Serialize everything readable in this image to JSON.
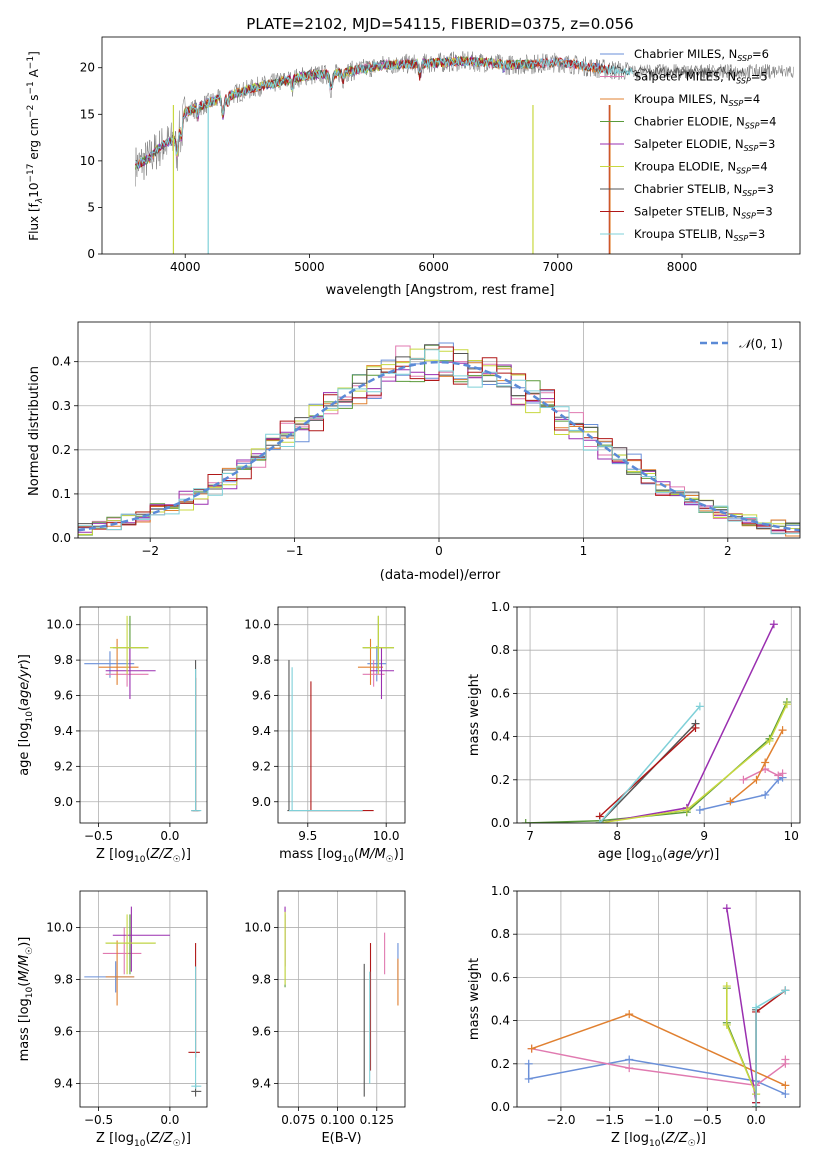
{
  "figure_title": "PLATE=2102, MJD=54115, FIBERID=0375, z=0.056",
  "colors": [
    "#6a8fd8",
    "#e07ab0",
    "#e08030",
    "#5a9a3a",
    "#9a2fb0",
    "#c8d840",
    "#555555",
    "#b01818",
    "#7fd0d8"
  ],
  "chart_data": [
    {
      "id": "spectrum",
      "type": "line",
      "xlabel": "wavelength [Angstrom, rest frame]",
      "ylabel": "Flux [f$_\\lambda$10$^{-17}$ erg cm$^{-2}$ s$^{-1}$ A$^{-1}$]",
      "ylabel_parts": [
        "Flux [f",
        "λ",
        "10",
        "−17",
        " erg cm",
        "−2",
        " s",
        "−1",
        " A",
        "−1",
        "]"
      ],
      "xlim": [
        3330,
        8950
      ],
      "ylim": [
        0,
        23.3
      ],
      "xticks": [
        4000,
        5000,
        6000,
        7000,
        8000
      ],
      "yticks": [
        0,
        5,
        10,
        15,
        20
      ],
      "grid": false,
      "legend_position": "right",
      "series": [
        {
          "name": "Chabrier MILES",
          "nssp": "6"
        },
        {
          "name": "Salpeter MILES",
          "nssp": "5"
        },
        {
          "name": "Kroupa MILES",
          "nssp": "4"
        },
        {
          "name": "Chabrier ELODIE",
          "nssp": "4"
        },
        {
          "name": "Salpeter ELODIE",
          "nssp": "3"
        },
        {
          "name": "Kroupa ELODIE",
          "nssp": "4"
        },
        {
          "name": "Chabrier STELIB",
          "nssp": "3"
        },
        {
          "name": "Salpeter STELIB",
          "nssp": "3"
        },
        {
          "name": "Kroupa STELIB",
          "nssp": "3"
        }
      ],
      "data_continuum": {
        "x": [
          3600,
          3700,
          3800,
          3900,
          4000,
          4200,
          4400,
          4600,
          4800,
          5000,
          5200,
          5400,
          5600,
          5800,
          6000,
          6200,
          6400,
          6600,
          6800,
          7000,
          7200,
          7400,
          7600
        ],
        "y": [
          9.5,
          10.2,
          11.5,
          12.2,
          15.2,
          16.3,
          17.2,
          18.0,
          18.6,
          19.2,
          19.3,
          19.8,
          20.3,
          20.4,
          20.5,
          20.7,
          20.6,
          20.3,
          20.4,
          20.6,
          20.2,
          19.8,
          19.6
        ]
      },
      "model_x_ranges": [
        [
          3600,
          7400
        ],
        [
          3600,
          7400
        ],
        [
          3600,
          7400
        ],
        [
          3600,
          6800
        ],
        [
          3600,
          6800
        ],
        [
          3900,
          6800
        ],
        [
          3600,
          8500
        ],
        [
          3600,
          7420
        ],
        [
          3600,
          7600
        ]
      ]
    },
    {
      "id": "residuals",
      "type": "histogram",
      "xlabel": "(data-model)/error",
      "ylabel": "Normed distribution",
      "xlim": [
        -2.5,
        2.5
      ],
      "ylim": [
        0,
        0.49
      ],
      "xticks": [
        -2,
        -1,
        0,
        1,
        2
      ],
      "yticks": [
        0.0,
        0.1,
        0.2,
        0.3,
        0.4
      ],
      "grid": true,
      "legend_position": "top-right",
      "reference_label": "𝒩(0, 1)",
      "reference_label_parts": [
        "𝒩",
        "(0, 1)"
      ],
      "bin_width": 0.1
    },
    {
      "id": "z-vs-age",
      "type": "errorbar",
      "xlabel": "Z [log10(Z/Z☉)]",
      "ylabel": "age [log10(age/yr)]",
      "xlim": [
        -0.63,
        0.26
      ],
      "ylim": [
        8.88,
        10.1
      ],
      "xticks": [
        -0.5,
        0.0
      ],
      "yticks": [
        9.0,
        9.2,
        9.4,
        9.6,
        9.8,
        10.0
      ],
      "grid": true,
      "points": [
        {
          "c": 0,
          "x": -0.42,
          "y": 9.78,
          "xe": [
            -0.6,
            -0.25
          ],
          "ye": [
            9.7,
            9.85
          ]
        },
        {
          "c": 1,
          "x": -0.3,
          "y": 9.72,
          "xe": [
            -0.45,
            -0.15
          ],
          "ye": [
            9.65,
            9.8
          ]
        },
        {
          "c": 2,
          "x": -0.37,
          "y": 9.76,
          "xe": [
            -0.5,
            -0.22
          ],
          "ye": [
            9.66,
            9.92
          ]
        },
        {
          "c": 3,
          "x": -0.28,
          "y": 9.87,
          "xe": [
            -0.4,
            -0.15
          ],
          "ye": [
            9.75,
            10.05
          ]
        },
        {
          "c": 4,
          "x": -0.28,
          "y": 9.74,
          "xe": [
            -0.45,
            -0.1
          ],
          "ye": [
            9.58,
            9.87
          ]
        },
        {
          "c": 5,
          "x": -0.3,
          "y": 9.87,
          "xe": [
            -0.42,
            -0.15
          ],
          "ye": [
            9.72,
            10.05
          ]
        },
        {
          "c": 6,
          "x": 0.18,
          "y": 8.95,
          "xe": [
            0.15,
            0.21
          ],
          "ye": [
            8.95,
            9.8
          ]
        },
        {
          "c": 7,
          "x": 0.18,
          "y": 8.95,
          "xe": [
            0.16,
            0.2
          ],
          "ye": [
            8.95,
            9.7
          ]
        },
        {
          "c": 8,
          "x": 0.18,
          "y": 8.95,
          "xe": [
            0.15,
            0.22
          ],
          "ye": [
            8.95,
            9.75
          ]
        }
      ]
    },
    {
      "id": "mass-vs-age",
      "type": "errorbar",
      "xlabel": "mass [log10(M/M☉)]",
      "ylabel": "",
      "xlim": [
        9.31,
        10.12
      ],
      "ylim": [
        8.88,
        10.1
      ],
      "xticks": [
        9.5,
        10.0
      ],
      "yticks": [
        9.0,
        9.2,
        9.4,
        9.6,
        9.8,
        10.0
      ],
      "grid": true,
      "points": [
        {
          "c": 0,
          "x": 9.94,
          "y": 9.78,
          "xe": [
            9.88,
            10.0
          ],
          "ye": [
            9.68,
            9.88
          ]
        },
        {
          "c": 1,
          "x": 9.92,
          "y": 9.72,
          "xe": [
            9.85,
            9.99
          ],
          "ye": [
            9.65,
            9.8
          ]
        },
        {
          "c": 2,
          "x": 9.9,
          "y": 9.76,
          "xe": [
            9.82,
            9.98
          ],
          "ye": [
            9.66,
            9.92
          ]
        },
        {
          "c": 3,
          "x": 9.95,
          "y": 9.87,
          "xe": [
            9.85,
            10.05
          ],
          "ye": [
            9.75,
            10.05
          ]
        },
        {
          "c": 4,
          "x": 9.97,
          "y": 9.74,
          "xe": [
            9.9,
            10.05
          ],
          "ye": [
            9.58,
            9.87
          ]
        },
        {
          "c": 5,
          "x": 9.95,
          "y": 9.87,
          "xe": [
            9.85,
            10.05
          ],
          "ye": [
            9.72,
            10.05
          ]
        },
        {
          "c": 6,
          "x": 9.38,
          "y": 8.95,
          "xe": [
            9.37,
            9.85
          ],
          "ye": [
            8.95,
            9.8
          ]
        },
        {
          "c": 7,
          "x": 9.52,
          "y": 8.95,
          "xe": [
            9.5,
            9.92
          ],
          "ye": [
            8.95,
            9.68
          ]
        },
        {
          "c": 8,
          "x": 9.4,
          "y": 8.95,
          "xe": [
            9.38,
            9.85
          ],
          "ye": [
            8.95,
            9.76
          ]
        }
      ]
    },
    {
      "id": "age-vs-weight",
      "type": "line",
      "xlabel": "age [log10(age/yr)]",
      "ylabel": "mass weight",
      "xlim": [
        6.85,
        10.1
      ],
      "ylim": [
        0,
        1.0
      ],
      "xticks": [
        7,
        8,
        9,
        10
      ],
      "yticks": [
        0.0,
        0.2,
        0.4,
        0.6,
        0.8,
        1.0
      ],
      "grid": true,
      "series": [
        {
          "c": 0,
          "x": [
            8.95,
            9.7,
            9.85,
            9.9
          ],
          "y": [
            0.06,
            0.13,
            0.2,
            0.21
          ]
        },
        {
          "c": 1,
          "x": [
            9.45,
            9.7,
            9.85,
            9.9
          ],
          "y": [
            0.2,
            0.25,
            0.22,
            0.23
          ]
        },
        {
          "c": 2,
          "x": [
            9.3,
            9.6,
            9.7,
            9.9
          ],
          "y": [
            0.1,
            0.2,
            0.28,
            0.43
          ]
        },
        {
          "c": 3,
          "x": [
            6.95,
            7.8,
            8.8,
            9.75,
            9.95
          ],
          "y": [
            0.0,
            0.01,
            0.05,
            0.39,
            0.56
          ]
        },
        {
          "c": 4,
          "x": [
            7.8,
            8.8,
            9.8
          ],
          "y": [
            0.0,
            0.07,
            0.92
          ]
        },
        {
          "c": 5,
          "x": [
            7.8,
            8.8,
            9.75,
            9.95
          ],
          "y": [
            0.0,
            0.06,
            0.38,
            0.55
          ]
        },
        {
          "c": 6,
          "x": [
            7.8,
            8.9
          ],
          "y": [
            0.0,
            0.46
          ]
        },
        {
          "c": 7,
          "x": [
            7.8,
            8.9
          ],
          "y": [
            0.03,
            0.44
          ]
        },
        {
          "c": 8,
          "x": [
            7.8,
            8.95
          ],
          "y": [
            0.0,
            0.54
          ]
        }
      ]
    },
    {
      "id": "z-vs-mass",
      "type": "errorbar",
      "xlabel": "Z [log10(Z/Z☉)]",
      "ylabel": "mass [log10(M/M☉)]",
      "xlim": [
        -0.63,
        0.26
      ],
      "ylim": [
        9.31,
        10.14
      ],
      "xticks": [
        -0.5,
        0.0
      ],
      "yticks": [
        9.4,
        9.6,
        9.8,
        10.0
      ],
      "grid": true,
      "points": [
        {
          "c": 0,
          "x": -0.38,
          "y": 9.81,
          "xe": [
            -0.6,
            -0.25
          ],
          "ye": [
            9.75,
            9.87
          ]
        },
        {
          "c": 1,
          "x": -0.32,
          "y": 9.9,
          "xe": [
            -0.47,
            -0.2
          ],
          "ye": [
            9.82,
            10.0
          ]
        },
        {
          "c": 2,
          "x": -0.37,
          "y": 9.81,
          "xe": [
            -0.45,
            -0.25
          ],
          "ye": [
            9.7,
            9.95
          ]
        },
        {
          "c": 3,
          "x": -0.28,
          "y": 9.94,
          "xe": [
            -0.45,
            -0.1
          ],
          "ye": [
            9.82,
            10.05
          ]
        },
        {
          "c": 4,
          "x": -0.27,
          "y": 9.97,
          "xe": [
            -0.4,
            0.0
          ],
          "ye": [
            9.83,
            10.08
          ]
        },
        {
          "c": 5,
          "x": -0.3,
          "y": 9.94,
          "xe": [
            -0.45,
            -0.1
          ],
          "ye": [
            9.82,
            10.05
          ]
        },
        {
          "c": 6,
          "x": 0.18,
          "y": 9.37,
          "xe": [
            0.15,
            0.22
          ],
          "ye": [
            9.35,
            9.4
          ]
        },
        {
          "c": 7,
          "x": 0.18,
          "y": 9.52,
          "xe": [
            0.13,
            0.21
          ],
          "ye": [
            9.5,
            9.94
          ]
        },
        {
          "c": 8,
          "x": 0.18,
          "y": 9.39,
          "xe": [
            0.15,
            0.22
          ],
          "ye": [
            9.38,
            9.85
          ]
        }
      ]
    },
    {
      "id": "ebv-vs-mass",
      "type": "errorbar",
      "xlabel": "E(B-V)",
      "ylabel": "",
      "xlim": [
        0.062,
        0.143
      ],
      "ylim": [
        9.31,
        10.14
      ],
      "xticks": [
        0.075,
        0.1,
        0.125
      ],
      "xtick_labels": [
        "0.075",
        "0.100",
        "0.125"
      ],
      "yticks": [
        9.4,
        9.6,
        9.8,
        10.0
      ],
      "grid": true,
      "points": [
        {
          "c": 0,
          "x": 0.1385,
          "y": 9.88,
          "xe": [
            0.1385,
            0.1385
          ],
          "ye": [
            9.8,
            9.94
          ]
        },
        {
          "c": 1,
          "x": 0.13,
          "y": 9.9,
          "xe": [
            0.13,
            0.13
          ],
          "ye": [
            9.82,
            9.98
          ]
        },
        {
          "c": 2,
          "x": 0.1385,
          "y": 9.8,
          "xe": [
            0.1385,
            0.1385
          ],
          "ye": [
            9.7,
            9.88
          ]
        },
        {
          "c": 3,
          "x": 0.0665,
          "y": 9.92,
          "xe": [
            0.0665,
            0.0665
          ],
          "ye": [
            9.77,
            10.05
          ]
        },
        {
          "c": 4,
          "x": 0.0665,
          "y": 9.97,
          "xe": [
            0.0665,
            0.0665
          ],
          "ye": [
            9.85,
            10.08
          ]
        },
        {
          "c": 5,
          "x": 0.0665,
          "y": 9.92,
          "xe": [
            0.0665,
            0.0665
          ],
          "ye": [
            9.78,
            10.06
          ]
        },
        {
          "c": 6,
          "x": 0.117,
          "y": 9.6,
          "xe": [
            0.117,
            0.117
          ],
          "ye": [
            9.35,
            9.86
          ]
        },
        {
          "c": 7,
          "x": 0.121,
          "y": 9.7,
          "xe": [
            0.121,
            0.121
          ],
          "ye": [
            9.45,
            9.94
          ]
        },
        {
          "c": 8,
          "x": 0.1205,
          "y": 9.6,
          "xe": [
            0.1205,
            0.1205
          ],
          "ye": [
            9.4,
            9.83
          ]
        }
      ]
    },
    {
      "id": "z-vs-weight",
      "type": "line",
      "xlabel": "Z [log10(Z/Z☉)]",
      "ylabel": "mass weight",
      "xlim": [
        -2.45,
        0.45
      ],
      "ylim": [
        0,
        1.0
      ],
      "xticks": [
        -2.0,
        -1.5,
        -1.0,
        -0.5,
        0.0
      ],
      "xtick_labels": [
        "−2.0",
        "−1.5",
        "−1.0",
        "−0.5",
        "0.0"
      ],
      "yticks": [
        0.0,
        0.2,
        0.4,
        0.6,
        0.8,
        1.0
      ],
      "grid": true,
      "series": [
        {
          "c": 0,
          "x": [
            -2.33,
            -2.33,
            -1.3,
            0.0,
            0.3
          ],
          "y": [
            0.2,
            0.13,
            0.22,
            0.12,
            0.06
          ]
        },
        {
          "c": 1,
          "x": [
            -2.3,
            -1.3,
            0.0,
            0.3,
            0.3
          ],
          "y": [
            0.27,
            0.18,
            0.1,
            0.2,
            0.22
          ]
        },
        {
          "c": 2,
          "x": [
            -2.3,
            -1.3,
            0.3
          ],
          "y": [
            0.27,
            0.43,
            0.1
          ]
        },
        {
          "c": 3,
          "x": [
            -0.3,
            -0.3,
            0.0,
            0.0
          ],
          "y": [
            0.55,
            0.39,
            0.06,
            0.0
          ]
        },
        {
          "c": 4,
          "x": [
            -0.3,
            0.0
          ],
          "y": [
            0.92,
            0.02
          ]
        },
        {
          "c": 5,
          "x": [
            -0.3,
            -0.3,
            0.0,
            0.0
          ],
          "y": [
            0.56,
            0.38,
            0.06,
            0.0
          ]
        },
        {
          "c": 6,
          "x": [
            0.0,
            0.0
          ],
          "y": [
            0.0,
            0.45
          ]
        },
        {
          "c": 7,
          "x": [
            0.0,
            0.0,
            0.3
          ],
          "y": [
            0.02,
            0.44,
            0.54
          ]
        },
        {
          "c": 8,
          "x": [
            0.0,
            0.0,
            0.3
          ],
          "y": [
            0.0,
            0.46,
            0.54
          ]
        }
      ]
    }
  ]
}
